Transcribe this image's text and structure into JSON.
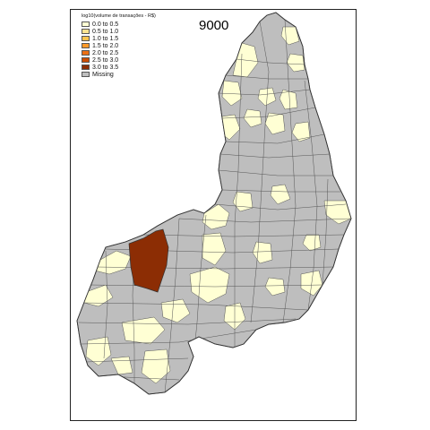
{
  "map": {
    "title": "9000",
    "legend": {
      "title": "log10(volume de transações - R$)",
      "items": [
        {
          "label": "0.0 to 0.5",
          "color": "#FFFFD4"
        },
        {
          "label": "0.5 to 1.0",
          "color": "#FEE391"
        },
        {
          "label": "1.0 to 1.5",
          "color": "#FEC44F"
        },
        {
          "label": "1.5 to 2.0",
          "color": "#FE9929"
        },
        {
          "label": "2.0 to 2.5",
          "color": "#EC7014"
        },
        {
          "label": "2.5 to 3.0",
          "color": "#CC4C02"
        },
        {
          "label": "3.0 to 3.5",
          "color": "#8C2D04"
        },
        {
          "label": "Missing",
          "color": "#BEBEBE"
        }
      ]
    },
    "colors": {
      "missing": "#BEBEBE",
      "low": "#FFFFD4",
      "high": "#8C2D04",
      "border": "#555555"
    }
  }
}
